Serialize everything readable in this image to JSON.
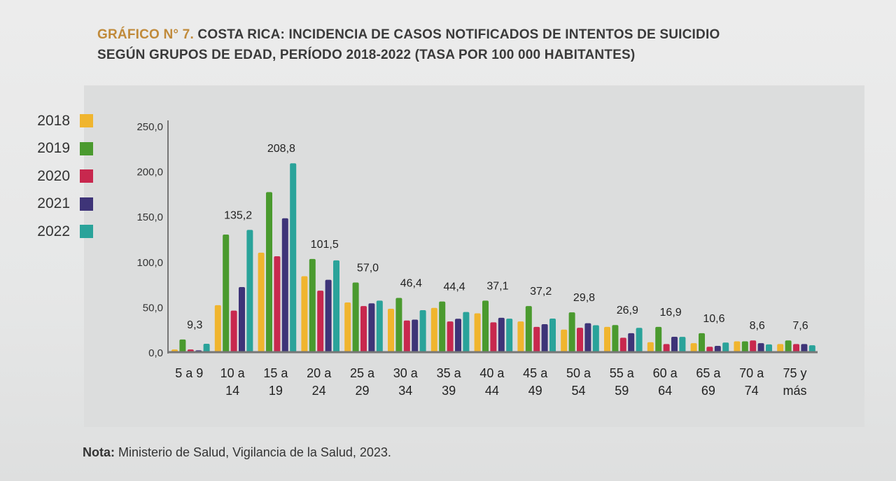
{
  "title": {
    "lead": "GRÁFICO N° 7.",
    "line1_rest": "COSTA RICA: INCIDENCIA DE CASOS NOTIFICADOS DE INTENTOS DE SUICIDIO",
    "line2": "SEGÚN GRUPOS DE EDAD, PERÍODO 2018-2022 (TASA POR 100 000 HABITANTES)"
  },
  "note": {
    "label": "Nota:",
    "text": "Ministerio de Salud, Vigilancia de la Salud, 2023."
  },
  "colors": {
    "2018": "#f0b52e",
    "2019": "#4a9a2e",
    "2020": "#c8284e",
    "2021": "#3e3478",
    "2022": "#2aa39a"
  },
  "chart_data": {
    "type": "bar",
    "ylim": [
      0,
      250
    ],
    "yticks": [
      "0,0",
      "50,0",
      "100,0",
      "150,0",
      "200,0",
      "250,0"
    ],
    "categories": [
      [
        "5 a 9",
        ""
      ],
      [
        "10 a",
        "14"
      ],
      [
        "15 a",
        "19"
      ],
      [
        "20 a",
        "24"
      ],
      [
        "25 a",
        "29"
      ],
      [
        "30 a",
        "34"
      ],
      [
        "35 a",
        "39"
      ],
      [
        "40 a",
        "44"
      ],
      [
        "45 a",
        "49"
      ],
      [
        "50 a",
        "54"
      ],
      [
        "55 a",
        "59"
      ],
      [
        "60 a",
        "64"
      ],
      [
        "65 a",
        "69"
      ],
      [
        "70 a",
        "74"
      ],
      [
        "75 y",
        "más"
      ]
    ],
    "series": [
      {
        "name": "2018",
        "values": [
          3,
          52,
          110,
          84,
          55,
          48,
          49,
          43,
          34,
          25,
          28,
          11,
          10,
          12,
          9
        ]
      },
      {
        "name": "2019",
        "values": [
          14,
          130,
          177,
          103,
          77,
          60,
          56,
          57,
          51,
          44,
          30,
          28,
          21,
          12,
          13
        ]
      },
      {
        "name": "2020",
        "values": [
          3,
          46,
          106,
          68,
          51,
          35,
          34,
          33,
          28,
          27,
          16,
          9,
          6,
          13,
          9
        ]
      },
      {
        "name": "2021",
        "values": [
          2,
          72,
          148,
          80,
          54,
          36,
          37,
          38,
          31,
          32,
          21,
          17,
          7,
          10,
          9
        ]
      },
      {
        "name": "2022",
        "values": [
          9.3,
          135.2,
          208.8,
          101.5,
          57.0,
          46.4,
          44.4,
          37.1,
          37.2,
          29.8,
          26.9,
          16.9,
          10.6,
          8.6,
          7.6
        ]
      }
    ],
    "data_labels": [
      "9,3",
      "135,2",
      "208,8",
      "101,5",
      "57,0",
      "46,4",
      "44,4",
      "37,1",
      "37,2",
      "29,8",
      "26,9",
      "16,9",
      "10,6",
      "8,6",
      "7,6"
    ],
    "legend_position": "left",
    "grid": false
  }
}
